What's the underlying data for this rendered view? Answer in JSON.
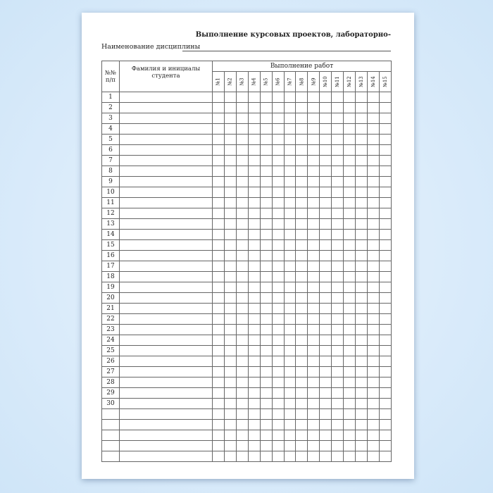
{
  "document": {
    "title": "Выполнение курсовых проектов, лабораторно-",
    "discipline_label": "Наименование дисциплины",
    "table": {
      "col_number": "№№ п/п",
      "col_name": "Фамилия и инициалы студента",
      "col_group": "Выполнение работ",
      "work_columns": [
        "№1",
        "№2",
        "№3",
        "№4",
        "№5",
        "№6",
        "№7",
        "№8",
        "№9",
        "№10",
        "№11",
        "№12",
        "№13",
        "№14",
        "№15"
      ],
      "row_numbers": [
        "1",
        "2",
        "3",
        "4",
        "5",
        "6",
        "7",
        "8",
        "9",
        "10",
        "11",
        "12",
        "13",
        "14",
        "15",
        "16",
        "17",
        "18",
        "19",
        "20",
        "21",
        "22",
        "23",
        "24",
        "25",
        "26",
        "27",
        "28",
        "29",
        "30",
        "",
        "",
        "",
        "",
        ""
      ]
    }
  }
}
